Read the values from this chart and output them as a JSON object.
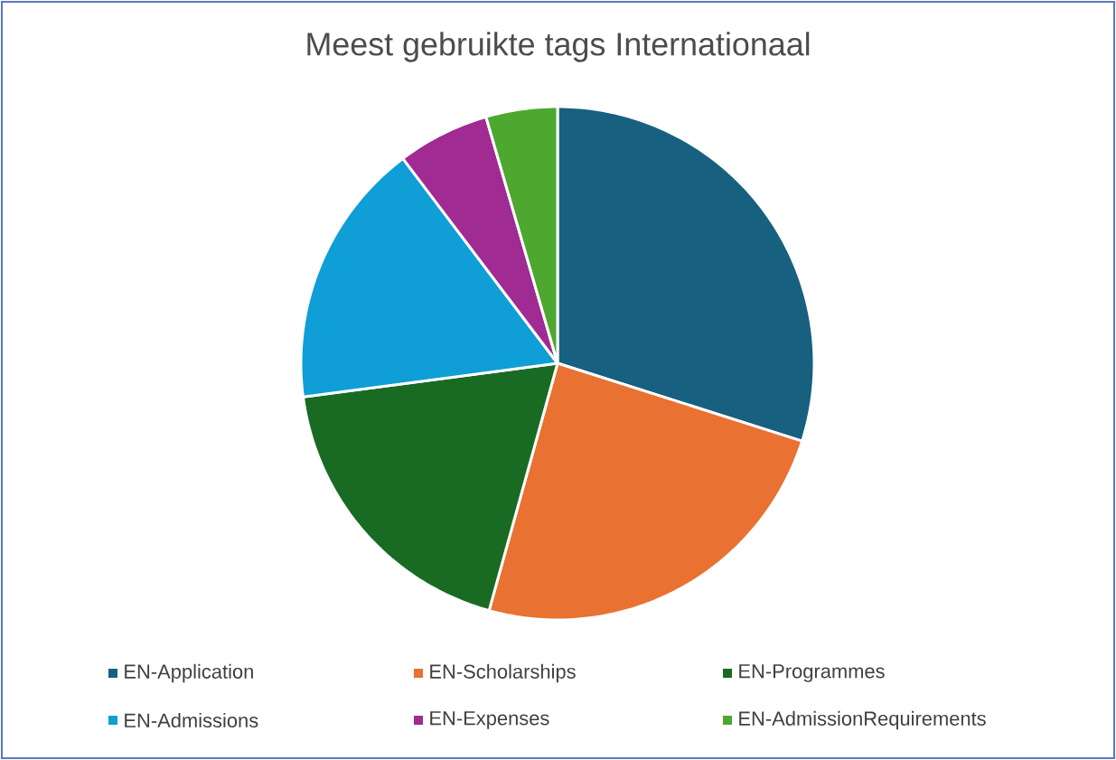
{
  "chart_data": {
    "type": "pie",
    "title": "Meest gebruikte tags Internationaal",
    "categories": [
      "EN-Application",
      "EN-Scholarships",
      "EN-Programmes",
      "EN-Admissions",
      "EN-Expenses",
      "EN-AdmissionRequirements"
    ],
    "values": [
      29.9,
      24.4,
      18.6,
      16.8,
      5.8,
      4.5
    ],
    "colors": [
      "#17607f",
      "#e97132",
      "#196b24",
      "#0f9ed5",
      "#a02b93",
      "#4ea72e"
    ],
    "legend": "bottom"
  }
}
